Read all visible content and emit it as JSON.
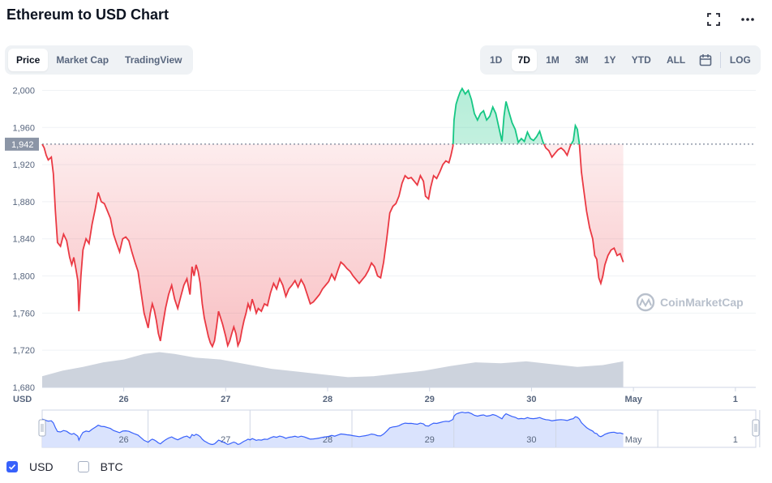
{
  "title": "Ethereum to USD Chart",
  "toolbar": {
    "left_tabs": [
      {
        "label": "Price",
        "active": true
      },
      {
        "label": "Market Cap",
        "active": false
      },
      {
        "label": "TradingView",
        "active": false
      }
    ],
    "ranges": [
      {
        "label": "1D",
        "active": false
      },
      {
        "label": "7D",
        "active": true
      },
      {
        "label": "1M",
        "active": false
      },
      {
        "label": "3M",
        "active": false
      },
      {
        "label": "1Y",
        "active": false
      },
      {
        "label": "YTD",
        "active": false
      },
      {
        "label": "ALL",
        "active": false
      }
    ],
    "log_label": "LOG",
    "icons": [
      "fullscreen-icon",
      "more-icon",
      "calendar-icon"
    ]
  },
  "watermark": "CoinMarketCap",
  "currency_label": "USD",
  "legend": [
    {
      "label": "USD",
      "checked": true
    },
    {
      "label": "BTC",
      "checked": false
    }
  ],
  "colors": {
    "up": "#16c784",
    "down": "#ea3943",
    "volume": "#c8ced9",
    "navigator_line": "#3861fb",
    "navigator_fill": "#d6e0fd",
    "axis_text": "#58667e"
  },
  "chart_data": {
    "type": "line",
    "ylim": [
      1680,
      2010
    ],
    "y_ticks": [
      1680,
      1720,
      1760,
      1800,
      1840,
      1880,
      1920,
      1960,
      2000
    ],
    "y_tick_labels": [
      "1,680",
      "1,720",
      "1,760",
      "1,800",
      "1,840",
      "1,880",
      "1,920",
      "1,960",
      "2,000"
    ],
    "x_tick_labels": [
      "26",
      "27",
      "28",
      "29",
      "30",
      "May",
      "1"
    ],
    "x_ticks": [
      0.8,
      1.8,
      2.8,
      3.8,
      4.8,
      5.8,
      6.8
    ],
    "xlim": [
      0,
      7
    ],
    "open_price": 1942,
    "open_price_label": "1,942",
    "price_series": [
      [
        0.0,
        1942
      ],
      [
        0.02,
        1938
      ],
      [
        0.04,
        1930
      ],
      [
        0.06,
        1925
      ],
      [
        0.09,
        1928
      ],
      [
        0.11,
        1910
      ],
      [
        0.13,
        1870
      ],
      [
        0.15,
        1836
      ],
      [
        0.18,
        1832
      ],
      [
        0.21,
        1845
      ],
      [
        0.24,
        1838
      ],
      [
        0.27,
        1820
      ],
      [
        0.29,
        1812
      ],
      [
        0.31,
        1820
      ],
      [
        0.33,
        1808
      ],
      [
        0.35,
        1795
      ],
      [
        0.36,
        1762
      ],
      [
        0.38,
        1800
      ],
      [
        0.4,
        1828
      ],
      [
        0.43,
        1840
      ],
      [
        0.46,
        1835
      ],
      [
        0.49,
        1856
      ],
      [
        0.52,
        1872
      ],
      [
        0.55,
        1890
      ],
      [
        0.58,
        1880
      ],
      [
        0.61,
        1878
      ],
      [
        0.64,
        1870
      ],
      [
        0.67,
        1862
      ],
      [
        0.7,
        1845
      ],
      [
        0.73,
        1835
      ],
      [
        0.76,
        1826
      ],
      [
        0.79,
        1840
      ],
      [
        0.82,
        1842
      ],
      [
        0.85,
        1838
      ],
      [
        0.88,
        1826
      ],
      [
        0.91,
        1815
      ],
      [
        0.94,
        1805
      ],
      [
        0.96,
        1790
      ],
      [
        0.98,
        1775
      ],
      [
        1.0,
        1760
      ],
      [
        1.02,
        1752
      ],
      [
        1.04,
        1744
      ],
      [
        1.06,
        1760
      ],
      [
        1.08,
        1770
      ],
      [
        1.1,
        1763
      ],
      [
        1.12,
        1752
      ],
      [
        1.14,
        1738
      ],
      [
        1.16,
        1730
      ],
      [
        1.18,
        1745
      ],
      [
        1.21,
        1765
      ],
      [
        1.24,
        1780
      ],
      [
        1.27,
        1790
      ],
      [
        1.3,
        1775
      ],
      [
        1.33,
        1765
      ],
      [
        1.36,
        1778
      ],
      [
        1.39,
        1790
      ],
      [
        1.42,
        1797
      ],
      [
        1.45,
        1780
      ],
      [
        1.47,
        1810
      ],
      [
        1.49,
        1800
      ],
      [
        1.51,
        1812
      ],
      [
        1.53,
        1805
      ],
      [
        1.55,
        1792
      ],
      [
        1.57,
        1770
      ],
      [
        1.59,
        1755
      ],
      [
        1.61,
        1745
      ],
      [
        1.63,
        1735
      ],
      [
        1.65,
        1728
      ],
      [
        1.67,
        1724
      ],
      [
        1.69,
        1730
      ],
      [
        1.71,
        1745
      ],
      [
        1.73,
        1762
      ],
      [
        1.75,
        1755
      ],
      [
        1.77,
        1748
      ],
      [
        1.8,
        1735
      ],
      [
        1.82,
        1725
      ],
      [
        1.84,
        1730
      ],
      [
        1.86,
        1738
      ],
      [
        1.88,
        1745
      ],
      [
        1.9,
        1738
      ],
      [
        1.92,
        1725
      ],
      [
        1.94,
        1730
      ],
      [
        1.96,
        1742
      ],
      [
        1.98,
        1752
      ],
      [
        2.0,
        1760
      ],
      [
        2.02,
        1770
      ],
      [
        2.04,
        1764
      ],
      [
        2.06,
        1775
      ],
      [
        2.08,
        1768
      ],
      [
        2.1,
        1760
      ],
      [
        2.12,
        1765
      ],
      [
        2.15,
        1762
      ],
      [
        2.18,
        1770
      ],
      [
        2.21,
        1768
      ],
      [
        2.24,
        1782
      ],
      [
        2.27,
        1792
      ],
      [
        2.3,
        1786
      ],
      [
        2.33,
        1797
      ],
      [
        2.36,
        1790
      ],
      [
        2.39,
        1778
      ],
      [
        2.42,
        1786
      ],
      [
        2.45,
        1790
      ],
      [
        2.48,
        1795
      ],
      [
        2.51,
        1788
      ],
      [
        2.54,
        1796
      ],
      [
        2.57,
        1790
      ],
      [
        2.6,
        1780
      ],
      [
        2.63,
        1770
      ],
      [
        2.66,
        1772
      ],
      [
        2.69,
        1776
      ],
      [
        2.72,
        1780
      ],
      [
        2.75,
        1786
      ],
      [
        2.78,
        1790
      ],
      [
        2.81,
        1794
      ],
      [
        2.84,
        1802
      ],
      [
        2.87,
        1796
      ],
      [
        2.9,
        1806
      ],
      [
        2.93,
        1815
      ],
      [
        2.96,
        1812
      ],
      [
        2.99,
        1808
      ],
      [
        3.02,
        1805
      ],
      [
        3.05,
        1800
      ],
      [
        3.08,
        1796
      ],
      [
        3.11,
        1792
      ],
      [
        3.14,
        1796
      ],
      [
        3.17,
        1800
      ],
      [
        3.2,
        1806
      ],
      [
        3.23,
        1814
      ],
      [
        3.26,
        1810
      ],
      [
        3.29,
        1800
      ],
      [
        3.32,
        1798
      ],
      [
        3.35,
        1815
      ],
      [
        3.38,
        1840
      ],
      [
        3.41,
        1868
      ],
      [
        3.44,
        1875
      ],
      [
        3.47,
        1878
      ],
      [
        3.5,
        1886
      ],
      [
        3.53,
        1900
      ],
      [
        3.56,
        1908
      ],
      [
        3.59,
        1905
      ],
      [
        3.62,
        1906
      ],
      [
        3.65,
        1902
      ],
      [
        3.68,
        1898
      ],
      [
        3.71,
        1908
      ],
      [
        3.74,
        1902
      ],
      [
        3.76,
        1886
      ],
      [
        3.79,
        1883
      ],
      [
        3.81,
        1895
      ],
      [
        3.84,
        1908
      ],
      [
        3.87,
        1905
      ],
      [
        3.9,
        1912
      ],
      [
        3.93,
        1920
      ],
      [
        3.96,
        1924
      ],
      [
        3.99,
        1922
      ],
      [
        4.01,
        1930
      ],
      [
        4.03,
        1940
      ],
      [
        4.04,
        1968
      ],
      [
        4.06,
        1985
      ],
      [
        4.08,
        1992
      ],
      [
        4.1,
        1998
      ],
      [
        4.12,
        2002
      ],
      [
        4.15,
        1996
      ],
      [
        4.18,
        2000
      ],
      [
        4.21,
        1990
      ],
      [
        4.24,
        1975
      ],
      [
        4.27,
        1968
      ],
      [
        4.3,
        1975
      ],
      [
        4.33,
        1978
      ],
      [
        4.36,
        1968
      ],
      [
        4.39,
        1972
      ],
      [
        4.42,
        1982
      ],
      [
        4.45,
        1975
      ],
      [
        4.48,
        1960
      ],
      [
        4.51,
        1945
      ],
      [
        4.53,
        1972
      ],
      [
        4.55,
        1988
      ],
      [
        4.58,
        1976
      ],
      [
        4.61,
        1965
      ],
      [
        4.64,
        1958
      ],
      [
        4.67,
        1944
      ],
      [
        4.7,
        1948
      ],
      [
        4.73,
        1945
      ],
      [
        4.76,
        1955
      ],
      [
        4.79,
        1948
      ],
      [
        4.82,
        1946
      ],
      [
        4.85,
        1950
      ],
      [
        4.88,
        1956
      ],
      [
        4.91,
        1945
      ],
      [
        4.94,
        1938
      ],
      [
        4.97,
        1935
      ],
      [
        5.0,
        1928
      ],
      [
        5.03,
        1932
      ],
      [
        5.06,
        1936
      ],
      [
        5.09,
        1938
      ],
      [
        5.12,
        1935
      ],
      [
        5.15,
        1930
      ],
      [
        5.18,
        1940
      ],
      [
        5.21,
        1946
      ],
      [
        5.23,
        1962
      ],
      [
        5.25,
        1958
      ],
      [
        5.27,
        1942
      ],
      [
        5.29,
        1912
      ],
      [
        5.31,
        1895
      ],
      [
        5.34,
        1870
      ],
      [
        5.37,
        1852
      ],
      [
        5.4,
        1840
      ],
      [
        5.42,
        1822
      ],
      [
        5.44,
        1818
      ],
      [
        5.46,
        1798
      ],
      [
        5.48,
        1792
      ],
      [
        5.5,
        1800
      ],
      [
        5.52,
        1812
      ],
      [
        5.55,
        1822
      ],
      [
        5.58,
        1828
      ],
      [
        5.61,
        1830
      ],
      [
        5.64,
        1822
      ],
      [
        5.67,
        1824
      ],
      [
        5.7,
        1815
      ]
    ],
    "volume_series": [
      [
        0.0,
        1692
      ],
      [
        0.2,
        1698
      ],
      [
        0.4,
        1702
      ],
      [
        0.6,
        1707
      ],
      [
        0.8,
        1710
      ],
      [
        1.0,
        1716
      ],
      [
        1.15,
        1718
      ],
      [
        1.3,
        1716
      ],
      [
        1.5,
        1712
      ],
      [
        1.75,
        1710
      ],
      [
        2.0,
        1705
      ],
      [
        2.25,
        1700
      ],
      [
        2.5,
        1697
      ],
      [
        2.75,
        1694
      ],
      [
        3.0,
        1691
      ],
      [
        3.25,
        1692
      ],
      [
        3.5,
        1695
      ],
      [
        3.75,
        1698
      ],
      [
        4.0,
        1703
      ],
      [
        4.25,
        1707
      ],
      [
        4.5,
        1706
      ],
      [
        4.75,
        1708
      ],
      [
        5.0,
        1705
      ],
      [
        5.25,
        1702
      ],
      [
        5.5,
        1704
      ],
      [
        5.7,
        1708
      ]
    ],
    "navigator": {
      "x_tick_labels": [
        "26",
        "27",
        "28",
        "29",
        "30",
        "May",
        "1"
      ],
      "series_ylim": [
        1700,
        2020
      ]
    }
  }
}
